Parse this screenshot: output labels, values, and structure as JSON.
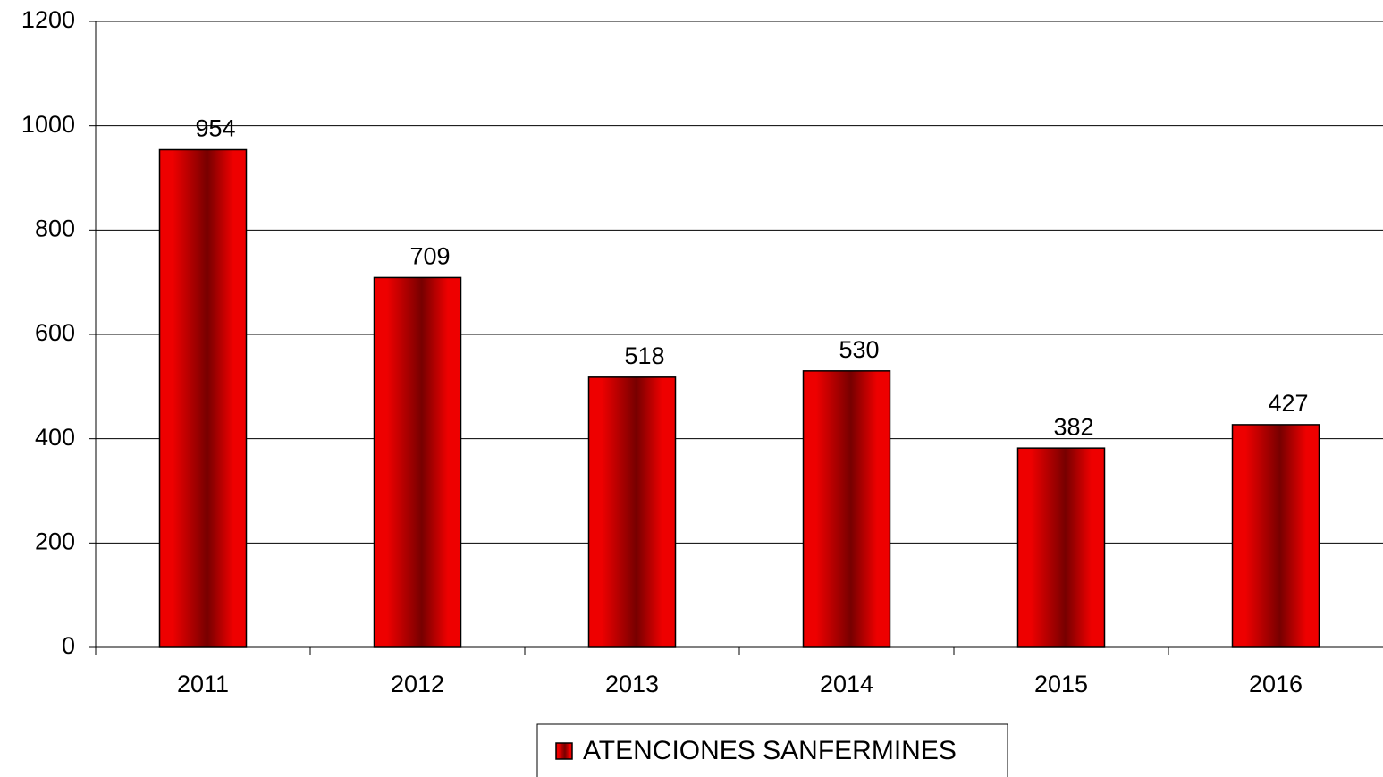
{
  "chart_data": {
    "type": "bar",
    "categories": [
      "2011",
      "2012",
      "2013",
      "2014",
      "2015",
      "2016"
    ],
    "series": [
      {
        "name": "ATENCIONES SANFERMINES",
        "color": "#ee0000",
        "values": [
          954,
          709,
          518,
          530,
          382,
          427
        ]
      }
    ],
    "ylim": [
      0,
      1200
    ],
    "yticks": [
      0,
      200,
      400,
      600,
      800,
      1000,
      1200
    ],
    "grid": true,
    "legend": "bottom",
    "data_labels": true
  }
}
